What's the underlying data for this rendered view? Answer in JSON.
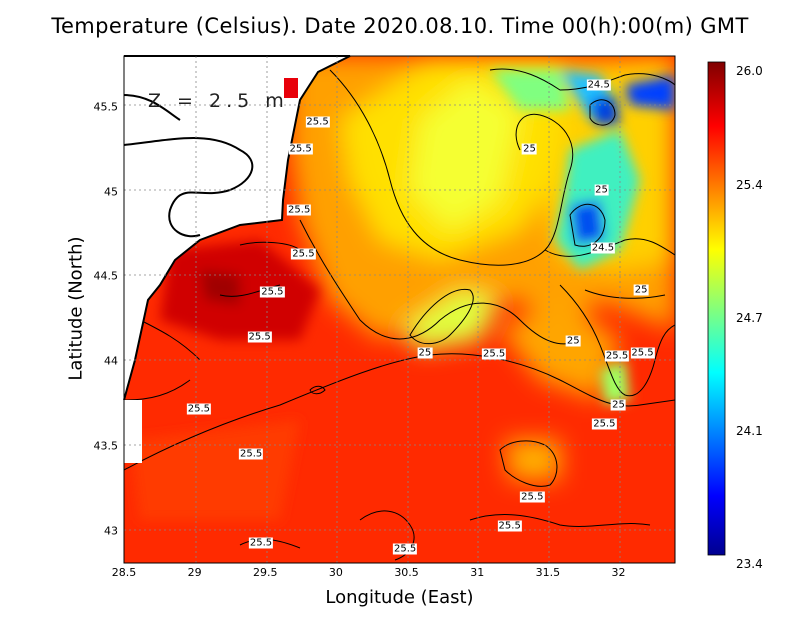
{
  "figure": {
    "title": "Temperature (Celsius). Date 2020.08.10. Time 00(h):00(m)  GMT",
    "depth_label": "Z = 2.5 m",
    "x_axis": {
      "label": "Longitude (East)",
      "range": [
        28.5,
        32.4
      ],
      "ticks": [
        {
          "value": 28.5,
          "label": "28.5"
        },
        {
          "value": 29,
          "label": "29"
        },
        {
          "value": 29.5,
          "label": "29.5"
        },
        {
          "value": 30,
          "label": "30"
        },
        {
          "value": 30.5,
          "label": "30.5"
        },
        {
          "value": 31,
          "label": "31"
        },
        {
          "value": 31.5,
          "label": "31.5"
        },
        {
          "value": 32,
          "label": "32"
        }
      ]
    },
    "y_axis": {
      "label": "Latitude (North)",
      "range": [
        42.81,
        45.8
      ],
      "ticks": [
        {
          "value": 43,
          "label": "43"
        },
        {
          "value": 43.5,
          "label": "43.5"
        },
        {
          "value": 44,
          "label": "44"
        },
        {
          "value": 44.5,
          "label": "44.5"
        },
        {
          "value": 45,
          "label": "45"
        },
        {
          "value": 45.5,
          "label": "45.5"
        }
      ]
    },
    "grid": "dotted",
    "colorbar": {
      "range": [
        23.4,
        26.0
      ],
      "ticks": [
        {
          "value": 26.0,
          "label": "26.0"
        },
        {
          "value": 25.4,
          "label": "25.4"
        },
        {
          "value": 24.7,
          "label": "24.7"
        },
        {
          "value": 24.1,
          "label": "24.1"
        },
        {
          "value": 23.4,
          "label": "23.4"
        }
      ],
      "colormap": [
        "#00008f",
        "#0000ff",
        "#00ffff",
        "#ffff00",
        "#ff0000",
        "#800000"
      ]
    },
    "contour_labels": [
      {
        "text": "24.5",
        "lon": 31.86,
        "lat": 45.63
      },
      {
        "text": "25.5",
        "lon": 29.87,
        "lat": 45.41
      },
      {
        "text": "25.5",
        "lon": 29.75,
        "lat": 45.25
      },
      {
        "text": "25",
        "lon": 31.37,
        "lat": 45.25
      },
      {
        "text": "25",
        "lon": 31.88,
        "lat": 45.01
      },
      {
        "text": "25.5",
        "lon": 29.74,
        "lat": 44.89
      },
      {
        "text": "25.5",
        "lon": 29.77,
        "lat": 44.63
      },
      {
        "text": "24.5",
        "lon": 31.89,
        "lat": 44.67
      },
      {
        "text": "25.5",
        "lon": 29.55,
        "lat": 44.41
      },
      {
        "text": "25",
        "lon": 32.16,
        "lat": 44.42
      },
      {
        "text": "25.5",
        "lon": 29.46,
        "lat": 44.14
      },
      {
        "text": "25",
        "lon": 31.68,
        "lat": 44.12
      },
      {
        "text": "25",
        "lon": 30.63,
        "lat": 44.05
      },
      {
        "text": "25.5",
        "lon": 31.12,
        "lat": 44.04
      },
      {
        "text": "25.5",
        "lon": 31.99,
        "lat": 44.03
      },
      {
        "text": "25.5",
        "lon": 32.17,
        "lat": 44.05
      },
      {
        "text": "25",
        "lon": 32.0,
        "lat": 43.74
      },
      {
        "text": "25.5",
        "lon": 29.03,
        "lat": 43.72
      },
      {
        "text": "25.5",
        "lon": 31.9,
        "lat": 43.63
      },
      {
        "text": "25.5",
        "lon": 29.4,
        "lat": 43.45
      },
      {
        "text": "25.5",
        "lon": 31.39,
        "lat": 43.2
      },
      {
        "text": "25.5",
        "lon": 31.23,
        "lat": 43.03
      },
      {
        "text": "25.5",
        "lon": 29.47,
        "lat": 42.93
      },
      {
        "text": "25.5",
        "lon": 30.49,
        "lat": 42.89
      }
    ]
  }
}
